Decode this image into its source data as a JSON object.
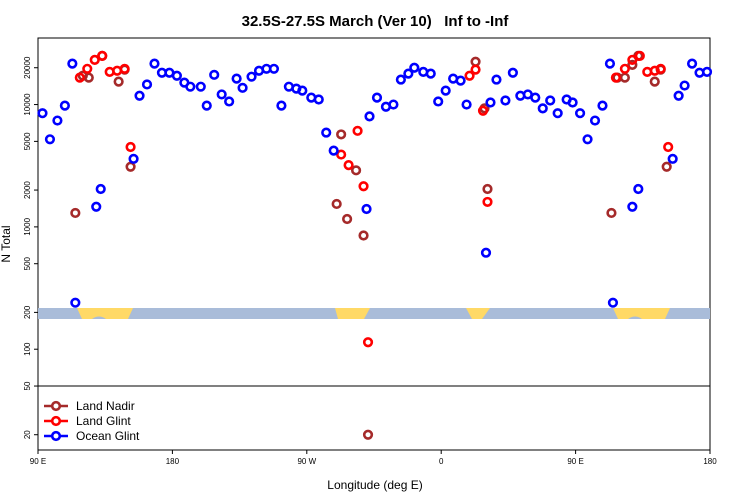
{
  "chart_data": {
    "type": "scatter",
    "title": "32.5S-27.5S March (Ver 10)   Inf to -Inf",
    "x_label": "Longitude (deg E)",
    "y_label": "N Total",
    "yscale": "log",
    "xlim": [
      90,
      540
    ],
    "xticks": [
      {
        "value": 90,
        "label": "90 E"
      },
      {
        "value": 180,
        "label": "180"
      },
      {
        "value": 270,
        "label": "90 W"
      },
      {
        "value": 360,
        "label": "0"
      },
      {
        "value": 450,
        "label": "90 E"
      },
      {
        "value": 540,
        "label": "180"
      }
    ],
    "ylim": [
      15,
      35000
    ],
    "yticks": [
      20,
      50,
      100,
      200,
      500,
      1000,
      2000,
      5000,
      10000,
      20000
    ],
    "hline": 50,
    "legend": "bottom-left",
    "series": [
      {
        "name": "Land Nadir",
        "color": "#a52a2a",
        "x": [
          115,
          120,
          124,
          133,
          144,
          148,
          152,
          290,
          293,
          297,
          303,
          308,
          311,
          383,
          389,
          391,
          474,
          478,
          483,
          488,
          492,
          503,
          507,
          511
        ],
        "values": [
          1300,
          17200,
          16600,
          25000,
          15400,
          19300,
          3100,
          1540,
          5700,
          1160,
          2900,
          850,
          20,
          22400,
          9300,
          2040,
          1300,
          16600,
          16600,
          21100,
          25000,
          15400,
          19300,
          3100
        ]
      },
      {
        "name": "Land Glint",
        "color": "#ff0000",
        "x": [
          118,
          123,
          128,
          133,
          138,
          143,
          148,
          152,
          293,
          298,
          304,
          308,
          311,
          379,
          383,
          388,
          391,
          477,
          483,
          488,
          493,
          498,
          503,
          507,
          512
        ],
        "values": [
          16600,
          19600,
          23200,
          25000,
          18500,
          18900,
          19600,
          4500,
          3900,
          3200,
          6100,
          2150,
          114,
          17200,
          19300,
          8900,
          1600,
          16600,
          19600,
          23200,
          25000,
          18500,
          18900,
          19600,
          4500
        ]
      },
      {
        "name": "Ocean Glint",
        "color": "#0000ff",
        "x": [
          93,
          98,
          103,
          108,
          113,
          115,
          129,
          132,
          154,
          158,
          163,
          168,
          173,
          178,
          183,
          188,
          192,
          199,
          203,
          208,
          213,
          218,
          223,
          227,
          233,
          238,
          243,
          248,
          253,
          258,
          263,
          267,
          273,
          278,
          283,
          288,
          310,
          312,
          317,
          323,
          328,
          333,
          338,
          342,
          348,
          353,
          358,
          363,
          368,
          373,
          377,
          390,
          393,
          397,
          403,
          408,
          413,
          418,
          423,
          428,
          433,
          438,
          444,
          448,
          453,
          458,
          463,
          468,
          473,
          475,
          488,
          492,
          515,
          519,
          523,
          528,
          533,
          538
        ],
        "values": [
          8500,
          5200,
          7400,
          9800,
          21600,
          240,
          1460,
          2040,
          3600,
          11800,
          14600,
          21600,
          18200,
          18200,
          17200,
          15100,
          14000,
          14000,
          9800,
          17500,
          12100,
          10600,
          16300,
          13700,
          16900,
          18900,
          19600,
          19600,
          9800,
          14000,
          13500,
          13000,
          11400,
          11000,
          5900,
          4200,
          1400,
          8000,
          11400,
          9600,
          10000,
          16000,
          17900,
          20000,
          18500,
          17900,
          10600,
          13000,
          16300,
          15700,
          10000,
          615,
          10400,
          16000,
          10800,
          18200,
          11800,
          12100,
          11400,
          9300,
          10800,
          8500,
          11000,
          10400,
          8500,
          5200,
          7400,
          9800,
          21600,
          240,
          1460,
          2040,
          3600,
          11800,
          14300,
          21600,
          18200,
          18500
        ]
      }
    ]
  }
}
